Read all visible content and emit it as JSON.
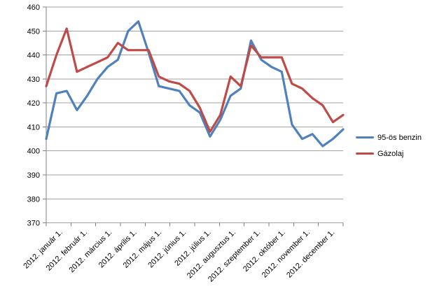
{
  "chart_data": {
    "type": "line",
    "title": "",
    "xlabel": "",
    "ylabel": "",
    "ylim": [
      370,
      460
    ],
    "ytick_step": 10,
    "ytick_labels": [
      "370",
      "380",
      "390",
      "400",
      "410",
      "420",
      "430",
      "440",
      "450",
      "460"
    ],
    "grid": true,
    "legend_position": "right",
    "x_axis": {
      "labels": [
        "2012. január 1.",
        "2012. február 1.",
        "2012. március 1.",
        "2012. április 1.",
        "2012. május 1.",
        "2012. június 1.",
        "2012. július 1.",
        "2012. augusztus 1.",
        "2012. szeptember 1.",
        "2012. október 1.",
        "2012. november 1.",
        "2012. december 1."
      ]
    },
    "series": [
      {
        "name": "95-ös benzin",
        "color": "#4F81BD",
        "values": [
          405,
          424,
          425,
          417,
          423,
          430,
          435,
          438,
          450,
          454,
          441,
          427,
          426,
          425,
          419,
          416,
          406,
          413,
          423,
          426,
          446,
          438,
          435,
          433,
          411,
          405,
          407,
          402,
          405,
          409
        ]
      },
      {
        "name": "Gázolaj",
        "color": "#BE4B48",
        "values": [
          427,
          440,
          451,
          433,
          435,
          437,
          439,
          445,
          442,
          442,
          442,
          431,
          429,
          428,
          425,
          418,
          408,
          415,
          431,
          427,
          444,
          439,
          439,
          439,
          428,
          426,
          422,
          419,
          412,
          415
        ]
      }
    ]
  },
  "colors": {
    "gridline": "#A3A3A3",
    "axis": "#808080",
    "tick_label": "#000000",
    "background": "#FFFFFF"
  }
}
